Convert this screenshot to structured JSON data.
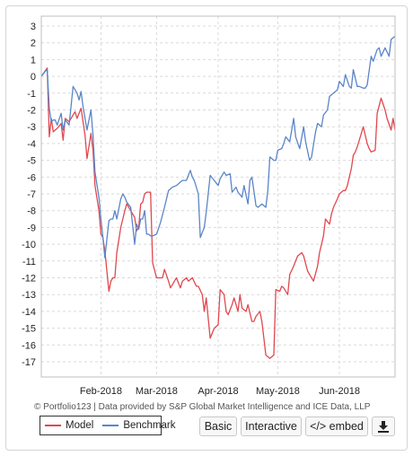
{
  "credit_text": "© Portfolio123 | Data provided by S&P Global Market Intelligence and ICE Data, LLP",
  "buttons": {
    "basic": "Basic",
    "interactive": "Interactive",
    "embed": "</> embed",
    "download_icon": "download-icon"
  },
  "colors": {
    "model": "#e0484f",
    "benchmark": "#5b85c8",
    "grid": "#d9d9d9"
  },
  "chart_data": {
    "type": "line",
    "title": "",
    "xlabel": "",
    "ylabel": "",
    "ylim": [
      -17.5,
      3.5
    ],
    "yticks": [
      3,
      2,
      1,
      0,
      -1,
      -2,
      -3,
      -4,
      -5,
      -6,
      -7,
      -8,
      -9,
      -10,
      -11,
      -12,
      -13,
      -14,
      -15,
      -16,
      -17
    ],
    "xlim": [
      "2018-01-02",
      "2018-06-29"
    ],
    "xticks": [
      {
        "label": "Feb-2018",
        "date": "2018-02-01"
      },
      {
        "label": "Mar-2018",
        "date": "2018-03-01"
      },
      {
        "label": "Apr-2018",
        "date": "2018-04-01"
      },
      {
        "label": "May-2018",
        "date": "2018-05-01"
      },
      {
        "label": "Jun-2018",
        "date": "2018-06-01"
      }
    ],
    "grid": true,
    "legend_position": "bottom-left",
    "series": [
      {
        "name": "Model",
        "x": [
          "2018-01-02",
          "2018-01-05",
          "2018-01-06",
          "2018-01-07",
          "2018-01-08",
          "2018-01-09",
          "2018-01-10",
          "2018-01-12",
          "2018-01-13",
          "2018-01-14",
          "2018-01-16",
          "2018-01-18",
          "2018-01-19",
          "2018-01-20",
          "2018-01-22",
          "2018-01-24",
          "2018-01-25",
          "2018-01-27",
          "2018-01-28",
          "2018-01-29",
          "2018-01-31",
          "2018-02-01",
          "2018-02-02",
          "2018-02-03",
          "2018-02-05",
          "2018-02-06",
          "2018-02-07",
          "2018-02-08",
          "2018-02-09",
          "2018-02-11",
          "2018-02-12",
          "2018-02-13",
          "2018-02-14",
          "2018-02-16",
          "2018-02-18",
          "2018-02-19",
          "2018-02-20",
          "2018-02-21",
          "2018-02-22",
          "2018-02-23",
          "2018-02-24",
          "2018-02-25",
          "2018-02-26",
          "2018-02-27",
          "2018-03-01",
          "2018-03-03",
          "2018-03-04",
          "2018-03-05",
          "2018-03-07",
          "2018-03-08",
          "2018-03-10",
          "2018-03-11",
          "2018-03-13",
          "2018-03-14",
          "2018-03-16",
          "2018-03-17",
          "2018-03-19",
          "2018-03-21",
          "2018-03-22",
          "2018-03-24",
          "2018-03-25",
          "2018-03-26",
          "2018-03-28",
          "2018-03-30",
          "2018-04-01",
          "2018-04-02",
          "2018-04-04",
          "2018-04-05",
          "2018-04-06",
          "2018-04-08",
          "2018-04-09",
          "2018-04-11",
          "2018-04-12",
          "2018-04-13",
          "2018-04-15",
          "2018-04-16",
          "2018-04-18",
          "2018-04-19",
          "2018-04-20",
          "2018-04-22",
          "2018-04-23",
          "2018-04-25",
          "2018-04-26",
          "2018-04-27",
          "2018-04-29",
          "2018-04-30",
          "2018-05-02",
          "2018-05-03",
          "2018-05-04",
          "2018-05-06",
          "2018-05-07",
          "2018-05-09",
          "2018-05-10",
          "2018-05-11",
          "2018-05-13",
          "2018-05-14",
          "2018-05-16",
          "2018-05-17",
          "2018-05-19",
          "2018-05-21",
          "2018-05-22",
          "2018-05-24",
          "2018-05-25",
          "2018-05-27",
          "2018-05-28",
          "2018-05-29",
          "2018-05-31",
          "2018-06-01",
          "2018-06-03",
          "2018-06-04",
          "2018-06-05",
          "2018-06-07",
          "2018-06-08",
          "2018-06-09",
          "2018-06-10",
          "2018-06-11",
          "2018-06-13",
          "2018-06-15",
          "2018-06-16",
          "2018-06-17",
          "2018-06-19",
          "2018-06-20",
          "2018-06-22",
          "2018-06-24",
          "2018-06-25",
          "2018-06-27",
          "2018-06-28",
          "2018-06-29"
        ],
        "y": [
          0,
          0.5,
          -3.6,
          -2.5,
          -3.3,
          -3.2,
          -3.1,
          -2.8,
          -3.8,
          -2.5,
          -2.7,
          -2.3,
          -2.1,
          -2.5,
          -1.9,
          -3.5,
          -4.9,
          -3.4,
          -4.4,
          -6.5,
          -8.0,
          -9.4,
          -9.6,
          -10.4,
          -12.8,
          -12.2,
          -12.0,
          -12.0,
          -10.5,
          -9.0,
          -8.5,
          -8.0,
          -7.6,
          -8.0,
          -8.4,
          -9.2,
          -9.0,
          -7.6,
          -7.5,
          -7.0,
          -6.9,
          -6.9,
          -6.9,
          -11.1,
          -12.0,
          -12.0,
          -12.0,
          -11.5,
          -12.2,
          -12.6,
          -12.2,
          -12.0,
          -12.6,
          -12.2,
          -12.0,
          -12.2,
          -12.0,
          -12.5,
          -12.5,
          -13.0,
          -14.0,
          -13.2,
          -15.6,
          -15.0,
          -14.8,
          -12.7,
          -13.0,
          -14.0,
          -14.2,
          -13.6,
          -13.2,
          -14.0,
          -13.0,
          -13.8,
          -14.0,
          -13.6,
          -14.6,
          -14.6,
          -14.3,
          -14.0,
          -14.6,
          -16.6,
          -16.7,
          -16.8,
          -16.6,
          -12.7,
          -12.8,
          -12.5,
          -12.6,
          -13.0,
          -11.8,
          -11.3,
          -11.0,
          -10.7,
          -10.5,
          -10.7,
          -11.6,
          -11.8,
          -12.2,
          -11.3,
          -10.5,
          -9.5,
          -8.5,
          -8.8,
          -8.2,
          -7.8,
          -7.3,
          -7.0,
          -6.8,
          -6.8,
          -6.5,
          -5.5,
          -4.7,
          -4.5,
          -4.2,
          -3.8,
          -3.0,
          -4.0,
          -4.3,
          -4.5,
          -4.4,
          -2.2,
          -1.3,
          -2.0,
          -2.5,
          -3.2,
          -2.5,
          -3.2
        ]
      },
      {
        "name": "Benchmark",
        "x": [
          "2018-01-02",
          "2018-01-04",
          "2018-01-05",
          "2018-01-06",
          "2018-01-07",
          "2018-01-08",
          "2018-01-09",
          "2018-01-10",
          "2018-01-12",
          "2018-01-13",
          "2018-01-14",
          "2018-01-16",
          "2018-01-18",
          "2018-01-20",
          "2018-01-21",
          "2018-01-22",
          "2018-01-23",
          "2018-01-25",
          "2018-01-27",
          "2018-01-28",
          "2018-01-29",
          "2018-01-31",
          "2018-02-01",
          "2018-02-02",
          "2018-02-03",
          "2018-02-05",
          "2018-02-06",
          "2018-02-07",
          "2018-02-08",
          "2018-02-09",
          "2018-02-11",
          "2018-02-12",
          "2018-02-13",
          "2018-02-14",
          "2018-02-16",
          "2018-02-18",
          "2018-02-19",
          "2018-02-20",
          "2018-02-21",
          "2018-02-22",
          "2018-02-23",
          "2018-02-24",
          "2018-02-25",
          "2018-02-26",
          "2018-02-27",
          "2018-03-01",
          "2018-03-03",
          "2018-03-05",
          "2018-03-07",
          "2018-03-09",
          "2018-03-11",
          "2018-03-13",
          "2018-03-14",
          "2018-03-16",
          "2018-03-18",
          "2018-03-19",
          "2018-03-20",
          "2018-03-22",
          "2018-03-23",
          "2018-03-25",
          "2018-03-26",
          "2018-03-28",
          "2018-03-30",
          "2018-04-01",
          "2018-04-02",
          "2018-04-04",
          "2018-04-05",
          "2018-04-07",
          "2018-04-08",
          "2018-04-10",
          "2018-04-11",
          "2018-04-13",
          "2018-04-14",
          "2018-04-16",
          "2018-04-17",
          "2018-04-18",
          "2018-04-20",
          "2018-04-21",
          "2018-04-23",
          "2018-04-25",
          "2018-04-26",
          "2018-04-27",
          "2018-04-29",
          "2018-04-30",
          "2018-05-01",
          "2018-05-03",
          "2018-05-04",
          "2018-05-05",
          "2018-05-07",
          "2018-05-09",
          "2018-05-10",
          "2018-05-12",
          "2018-05-14",
          "2018-05-15",
          "2018-05-17",
          "2018-05-18",
          "2018-05-20",
          "2018-05-21",
          "2018-05-23",
          "2018-05-24",
          "2018-05-26",
          "2018-05-27",
          "2018-05-29",
          "2018-05-31",
          "2018-06-01",
          "2018-06-03",
          "2018-06-04",
          "2018-06-06",
          "2018-06-07",
          "2018-06-08",
          "2018-06-10",
          "2018-06-11",
          "2018-06-13",
          "2018-06-14",
          "2018-06-15",
          "2018-06-17",
          "2018-06-18",
          "2018-06-20",
          "2018-06-21",
          "2018-06-22",
          "2018-06-24",
          "2018-06-26",
          "2018-06-27",
          "2018-06-29"
        ],
        "y": [
          0,
          0.3,
          0.4,
          -1.9,
          -2.7,
          -2.6,
          -2.6,
          -2.9,
          -2.2,
          -3.2,
          -2.6,
          -2.9,
          -0.6,
          -1.0,
          -1.4,
          -0.9,
          -1.8,
          -3.2,
          -2.0,
          -3.5,
          -5.7,
          -7.2,
          -8.5,
          -9.6,
          -10.8,
          -8.6,
          -8.5,
          -8.5,
          -8.0,
          -8.5,
          -7.3,
          -7.0,
          -7.2,
          -7.5,
          -7.8,
          -10.0,
          -8.8,
          -9.1,
          -8.5,
          -8.5,
          -8.0,
          -9.4,
          -9.4,
          -9.5,
          -9.5,
          -9.4,
          -8.7,
          -7.8,
          -6.8,
          -6.6,
          -6.5,
          -6.3,
          -6.2,
          -6.2,
          -5.6,
          -6.0,
          -6.2,
          -7.0,
          -9.6,
          -9.0,
          -8.1,
          -5.9,
          -6.2,
          -6.5,
          -6.1,
          -5.7,
          -5.9,
          -5.8,
          -6.9,
          -6.6,
          -6.9,
          -7.2,
          -6.5,
          -7.6,
          -6.2,
          -6.0,
          -7.7,
          -7.8,
          -7.6,
          -7.8,
          -6.8,
          -4.8,
          -5.0,
          -5.0,
          -4.4,
          -4.3,
          -4.0,
          -3.6,
          -3.9,
          -2.5,
          -3.6,
          -4.3,
          -3.0,
          -3.9,
          -5.0,
          -4.8,
          -3.3,
          -2.8,
          -3.0,
          -2.3,
          -2.0,
          -1.2,
          -1.0,
          -0.8,
          -0.3,
          -0.6,
          0.1,
          -0.6,
          -0.7,
          0.4,
          -0.6,
          -0.6,
          -0.7,
          -0.7,
          -0.5,
          1.2,
          0.9,
          1.6,
          1.7,
          1.2,
          1.7,
          1.2,
          2.2,
          2.4
        ]
      }
    ]
  }
}
